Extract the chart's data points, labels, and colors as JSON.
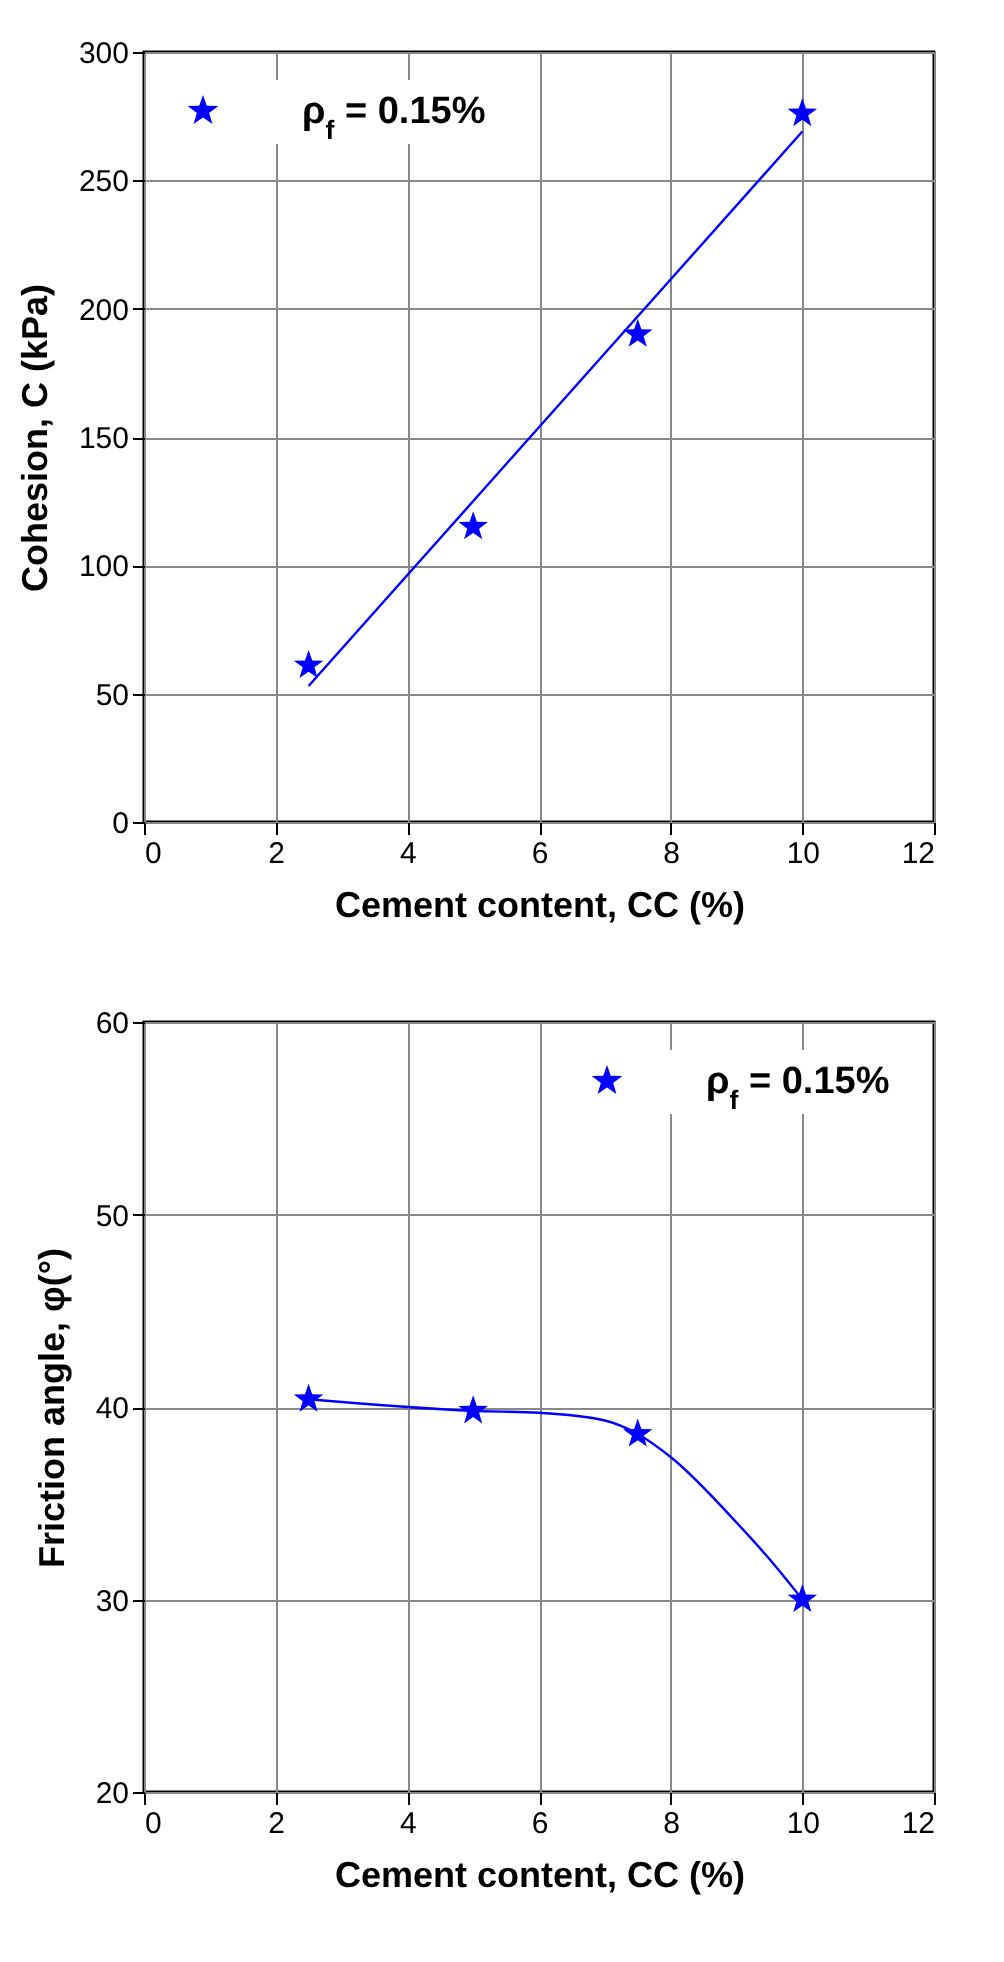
{
  "chart_data": [
    {
      "type": "scatter",
      "xlabel": "Cement content, CC (%)",
      "ylabel": "Cohesion, C (kPa)",
      "x": [
        2.5,
        5,
        7.5,
        10
      ],
      "xlim": [
        0,
        12
      ],
      "xticks": [
        0,
        2,
        4,
        6,
        8,
        10,
        12
      ],
      "ylim": [
        0,
        300
      ],
      "yticks": [
        0,
        50,
        100,
        150,
        200,
        250,
        300
      ],
      "grid": true,
      "legend": "top left",
      "series": [
        {
          "name": "ρ$_{f}$ = 0.15%",
          "color": "#0000ff",
          "marker": "star",
          "values": [
            61,
            115,
            190,
            276
          ]
        },
        {
          "type": "line",
          "color": "#0000ff",
          "marker": "none",
          "x": [
            2.5,
            10
          ],
          "values": [
            53,
            269
          ]
        }
      ]
    },
    {
      "type": "scatter",
      "xlabel": "Cement content, CC (%)",
      "ylabel": "Friction angle, φ(°)",
      "x": [
        2.5,
        5,
        7.5,
        10
      ],
      "xlim": [
        0,
        12
      ],
      "xticks": [
        0,
        2,
        4,
        6,
        8,
        10,
        12
      ],
      "ylim": [
        20,
        60
      ],
      "yticks": [
        20,
        30,
        40,
        50,
        60
      ],
      "grid": true,
      "legend": "top right",
      "series": [
        {
          "name": "ρ$_{f}$ = 0.15%",
          "color": "#0000ff",
          "marker": "star",
          "values": [
            40.4,
            39.8,
            38.6,
            30
          ]
        },
        {
          "type": "line",
          "color": "#0000ff",
          "marker": "none",
          "x": [
            2.5,
            5,
            6,
            7,
            7.5,
            8,
            9,
            9.5,
            10
          ],
          "values": [
            40.4,
            39.8,
            39.7,
            39.3,
            38.6,
            37.4,
            34.0,
            32.1,
            30
          ]
        }
      ]
    }
  ]
}
